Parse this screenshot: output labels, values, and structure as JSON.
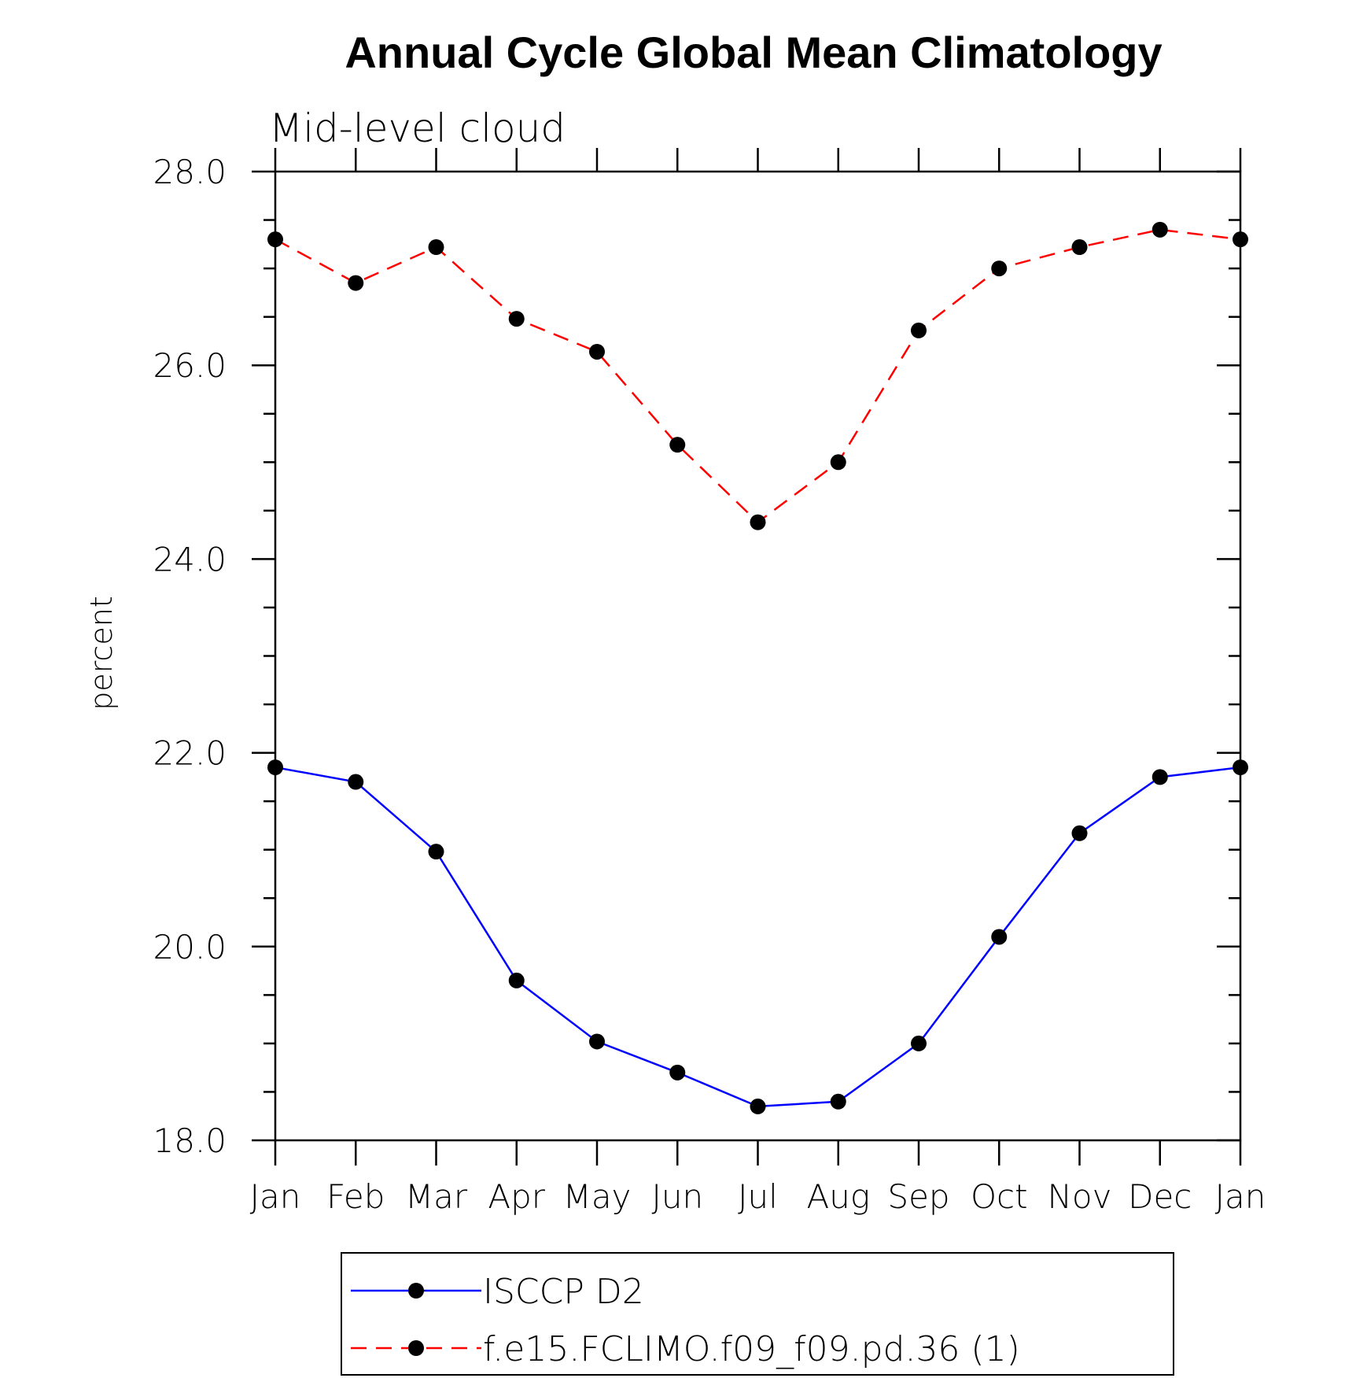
{
  "chart_data": {
    "type": "line",
    "title": "Annual Cycle Global Mean Climatology",
    "subtitle": "Mid-level cloud",
    "ylabel": "percent",
    "xlabel": "",
    "categories": [
      "Jan",
      "Feb",
      "Mar",
      "Apr",
      "May",
      "Jun",
      "Jul",
      "Aug",
      "Sep",
      "Oct",
      "Nov",
      "Dec",
      "Jan"
    ],
    "ylim": [
      18.0,
      28.0
    ],
    "yticks": [
      "18.0",
      "20.0",
      "22.0",
      "24.0",
      "26.0",
      "28.0"
    ],
    "grid": false,
    "legend_position": "bottom",
    "series": [
      {
        "name": "ISCCP D2",
        "color": "#0000ff",
        "line_style": "solid",
        "marker": "filled-circle",
        "marker_color": "#000000",
        "values": [
          21.85,
          21.7,
          20.98,
          19.65,
          19.02,
          18.7,
          18.35,
          18.4,
          19.0,
          20.1,
          21.17,
          21.75,
          21.85
        ]
      },
      {
        "name": "f.e15.FCLIMO.f09_f09.pd.36 (1)",
        "color": "#ff0000",
        "line_style": "dashed",
        "marker": "filled-circle",
        "marker_color": "#000000",
        "values": [
          27.3,
          26.85,
          27.22,
          26.48,
          26.14,
          25.18,
          24.38,
          25.0,
          26.36,
          27.0,
          27.22,
          27.4,
          27.3
        ]
      }
    ]
  }
}
